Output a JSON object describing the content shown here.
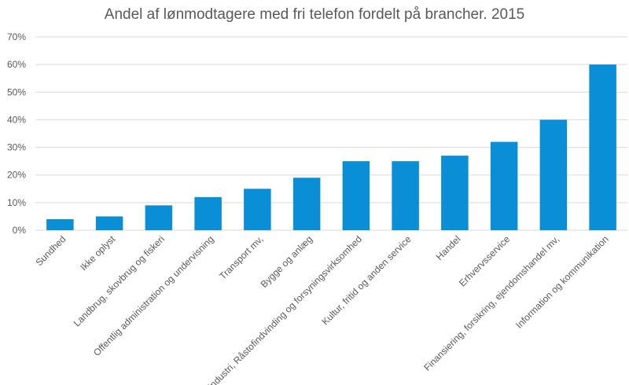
{
  "chart_data": {
    "type": "bar",
    "title": "Andel af lønmodtagere med fri telefon fordelt på brancher. 2015",
    "xlabel": "",
    "ylabel": "",
    "ylim": [
      0,
      70
    ],
    "y_ticks": [
      0,
      10,
      20,
      30,
      40,
      50,
      60,
      70
    ],
    "y_tick_labels": [
      "0%",
      "10%",
      "20%",
      "30%",
      "40%",
      "50%",
      "60%",
      "70%"
    ],
    "grid": true,
    "legend": "none",
    "bar_color": "#0A8ED6",
    "categories": [
      "Sundhed",
      "Ikke oplyst",
      "Landbrug, skovbrug og fiskeri",
      "Offentlig administration og undervisning",
      "Transport mv,",
      "Bygge og anlæg",
      "Industri, Råstofindvinding og forsyningsvirksomhed",
      "Kultur, fritid og anden service",
      "Handel",
      "Erhvervsservice",
      "Finansiering, forsikring, ejendomshandel mv,",
      "Information og kommunikation"
    ],
    "values": [
      4,
      5,
      9,
      12,
      15,
      19,
      25,
      25,
      27,
      32,
      40,
      60
    ]
  }
}
